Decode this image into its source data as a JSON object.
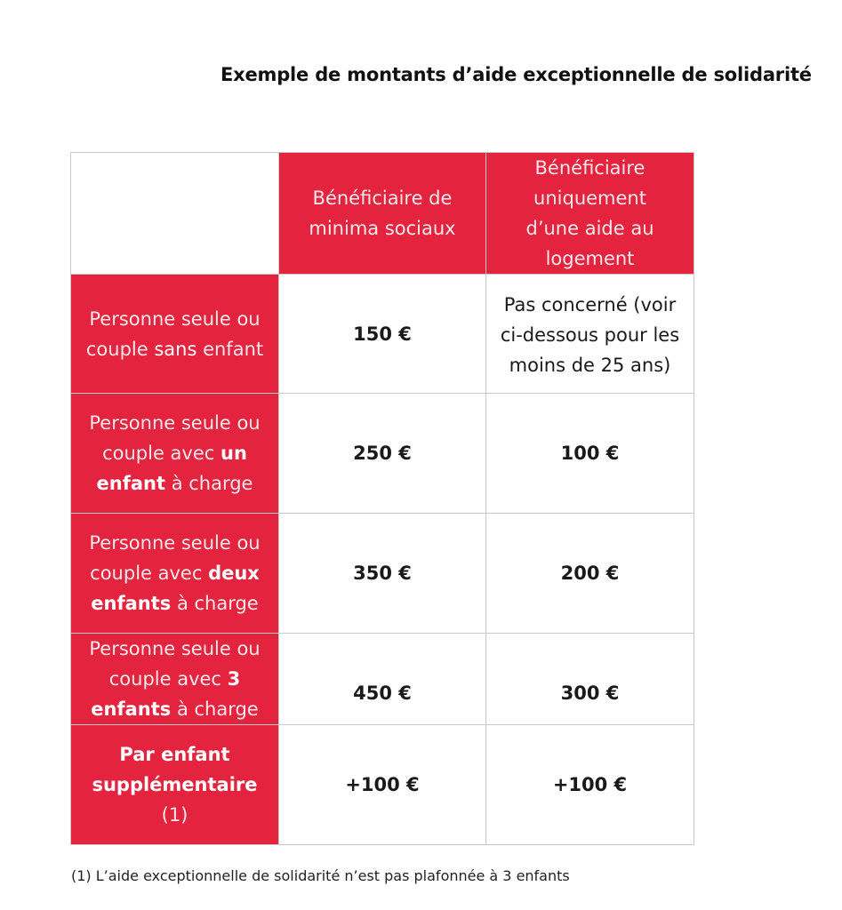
{
  "title": "Exemple de montants d’aide exceptionnelle de solidarité",
  "table": {
    "headers": {
      "corner": "",
      "col1": "Bénéficiaire de minima sociaux",
      "col2": "Bénéficiaire uniquement d’une aide au logement"
    },
    "rows": [
      {
        "label_parts": [
          "Personne seule ou couple ",
          "sans",
          " enfant"
        ],
        "minima": "150 €",
        "logement": "Pas concerné (voir ci-dessous pour les moins de 25 ans)"
      },
      {
        "label_parts": [
          "Personne seule ou couple avec ",
          "un enfant",
          " à charge"
        ],
        "minima": "250 €",
        "logement": "100 €"
      },
      {
        "label_parts": [
          "Personne seule ou couple avec ",
          "deux enfants",
          " à charge"
        ],
        "minima": "350 €",
        "logement": "200 €"
      },
      {
        "label_parts": [
          "Personne seule ou couple avec ",
          "3 enfants",
          " à charge"
        ],
        "minima": "450 €",
        "logement": "300 €"
      },
      {
        "label_parts": [
          "Par enfant supplémentaire",
          " (1)"
        ],
        "minima": "+100 €",
        "logement": "+100 €"
      }
    ]
  },
  "footnote": "(1) L’aide exceptionnelle de solidarité n’est pas plafonnée à 3 enfants",
  "colors": {
    "accent_red": "#e4233f",
    "border": "#c8c8c8"
  }
}
